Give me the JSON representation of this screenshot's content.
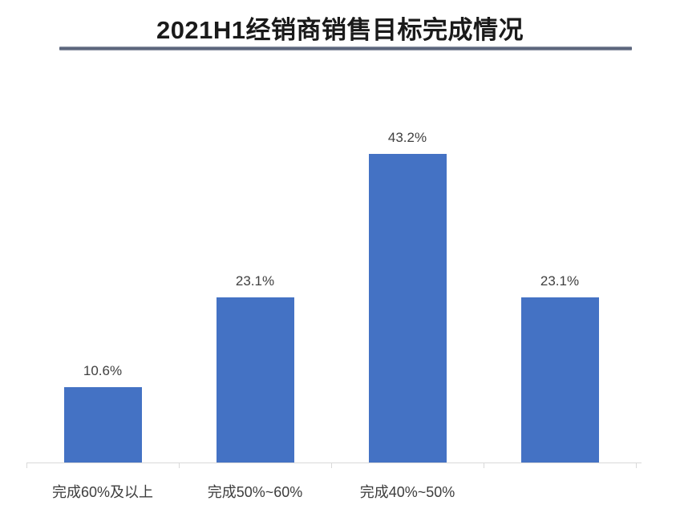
{
  "chart_data": {
    "type": "bar",
    "title": "2021H1经销商销售目标完成情况",
    "categories": [
      "完成60%及以上",
      "完成50%~60%",
      "完成40%~50%",
      ""
    ],
    "values": [
      10.6,
      23.1,
      43.2,
      23.1
    ],
    "value_labels": [
      "10.6%",
      "23.1%",
      "43.2%",
      "23.1%"
    ],
    "xlabel": "",
    "ylabel": "",
    "ylim": [
      0,
      50
    ],
    "grid": false,
    "legend": false,
    "bar_color": "#4472c4",
    "value_label_color": "#404040",
    "category_label_color": "#3d3d3d",
    "axis_color": "#d9d9d9",
    "title_color": "#1a1a1a",
    "title_rule_color": "#59637a"
  }
}
